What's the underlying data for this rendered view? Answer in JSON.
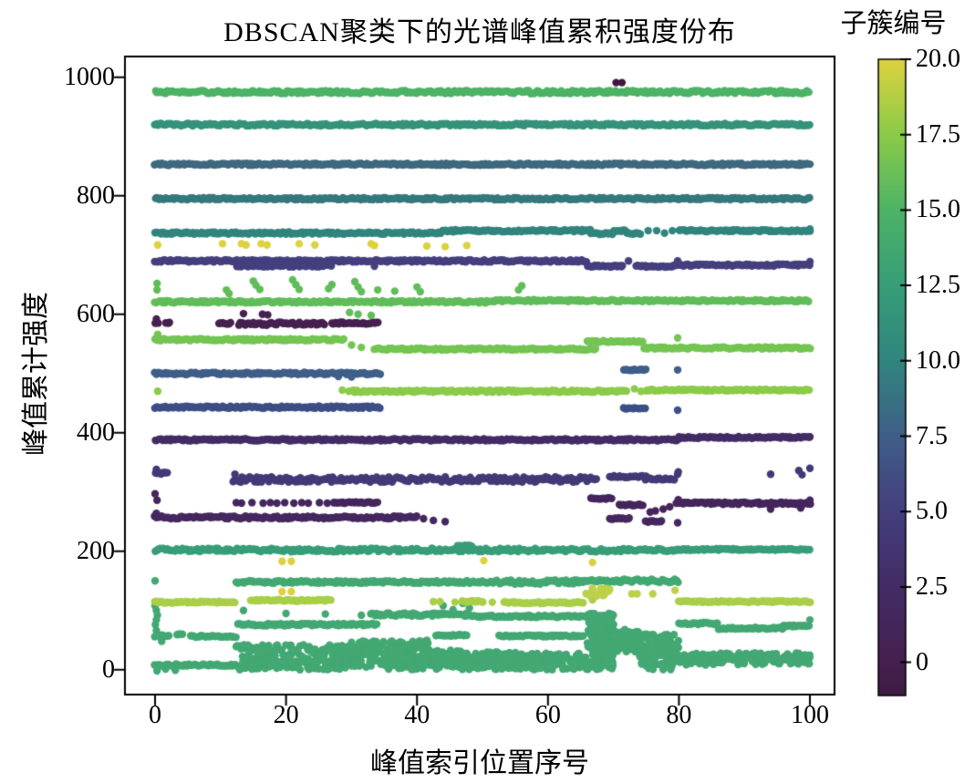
{
  "figure": {
    "background": "#ffffff",
    "frame_color": "#000000",
    "text_color": "#000000"
  },
  "chart_data": {
    "type": "scatter",
    "title": "DBSCAN聚类下的光谱峰值累积强度份布",
    "xlabel": "峰值索引位置序号",
    "ylabel": "峰值累计强度",
    "x_tick_labels": [
      "0",
      "20",
      "40",
      "60",
      "80",
      "100"
    ],
    "x_tick_values": [
      0,
      20,
      40,
      60,
      80,
      100
    ],
    "y_tick_labels": [
      "0",
      "200",
      "400",
      "600",
      "800",
      "1000"
    ],
    "y_tick_values": [
      0,
      200,
      400,
      600,
      800,
      1000
    ],
    "xlim": [
      -4.6,
      103.76
    ],
    "ylim": [
      -42,
      1035
    ],
    "grid": false,
    "marker_radius": 4.2,
    "point_step": 0.27,
    "colorbar": {
      "label": "子簇编号",
      "vmin": -1,
      "vmax": 20,
      "position": "right",
      "tick_values": [
        0,
        2.5,
        5,
        7.5,
        10,
        12.5,
        15,
        17.5,
        20
      ],
      "tick_labels": [
        "0",
        "2.5",
        "5.0",
        "7.5",
        "10.0",
        "12.5",
        "15.0",
        "17.5",
        "20.0"
      ],
      "stops": [
        [
          -1,
          "#3e1c44"
        ],
        [
          0,
          "#46204f"
        ],
        [
          2.5,
          "#432c66"
        ],
        [
          5,
          "#443f7e"
        ],
        [
          7.5,
          "#3f5e88"
        ],
        [
          10,
          "#31857e"
        ],
        [
          12.5,
          "#379e78"
        ],
        [
          15,
          "#4db366"
        ],
        [
          17.5,
          "#8bcb49"
        ],
        [
          20,
          "#ddd23e"
        ]
      ]
    },
    "clusters": [
      {
        "id": -1,
        "color": "#3f1740",
        "points": [
          [
            70.4,
            991
          ],
          [
            71.3,
            991
          ]
        ]
      },
      {
        "id": 0,
        "color": "#46204f",
        "bands": [
          [
            0,
            0.6,
            585,
            2
          ],
          [
            1.7,
            2.3,
            585,
            1.5
          ],
          [
            9.7,
            11.6,
            585,
            1.5
          ],
          [
            12.8,
            26,
            584,
            2.5
          ],
          [
            27,
            34.2,
            585,
            1.5
          ]
        ],
        "points": [
          [
            13.5,
            601
          ],
          [
            16.4,
            600
          ],
          [
            17.2,
            599
          ],
          [
            0.2,
            592
          ]
        ]
      },
      {
        "id": 1,
        "color": "#45265c",
        "bands": [
          [
            27.2,
            34.2,
            282,
            1.2
          ],
          [
            66.5,
            69.8,
            289,
            1.2
          ],
          [
            71,
            74.6,
            278,
            1.2
          ],
          [
            80,
            100,
            281,
            2
          ]
        ],
        "points": [
          [
            0,
            297
          ],
          [
            0.3,
            286
          ],
          [
            12.4,
            282
          ],
          [
            13.2,
            281
          ],
          [
            14.8,
            282
          ],
          [
            16.5,
            281
          ],
          [
            17.6,
            282
          ],
          [
            18.6,
            281
          ],
          [
            19.8,
            282
          ],
          [
            21.2,
            281
          ],
          [
            22.4,
            282
          ],
          [
            23.4,
            281
          ],
          [
            25.1,
            282
          ],
          [
            26.3,
            281
          ],
          [
            75.6,
            266
          ],
          [
            76.4,
            268
          ],
          [
            77.6,
            271
          ],
          [
            78.6,
            275
          ],
          [
            79.6,
            281
          ],
          [
            79.9,
            287
          ],
          [
            94,
            271
          ],
          [
            98.6,
            273
          ],
          [
            100,
            286
          ],
          [
            100,
            280
          ]
        ]
      },
      {
        "id": 2,
        "color": "#45285f",
        "bands": [
          [
            0,
            40,
            257,
            2.2
          ],
          [
            69.5,
            72.6,
            255,
            1.2
          ],
          [
            75,
            77.6,
            250,
            1.2
          ]
        ],
        "points": [
          [
            41,
            255
          ],
          [
            42.5,
            252
          ],
          [
            44.3,
            250
          ],
          [
            79.8,
            248
          ],
          [
            0.2,
            264
          ]
        ]
      },
      {
        "id": 3,
        "color": "#432c66",
        "bands": [
          [
            0,
            80,
            388,
            1.6
          ],
          [
            80,
            100,
            392,
            1.4
          ]
        ],
        "points": [
          [
            100,
            393
          ]
        ]
      },
      {
        "id": 4,
        "color": "#413a77",
        "bands": [
          [
            0,
            2,
            332,
            1.8
          ],
          [
            12,
            67.6,
            321,
            4.5
          ],
          [
            69.5,
            75,
            326,
            1.5
          ],
          [
            74.8,
            79.6,
            322,
            1.5
          ]
        ],
        "points": [
          [
            12.2,
            330
          ],
          [
            79.8,
            330
          ],
          [
            79.9,
            334
          ],
          [
            94,
            330
          ],
          [
            98.3,
            336
          ],
          [
            98.8,
            329
          ],
          [
            100,
            340
          ],
          [
            0.2,
            338
          ]
        ]
      },
      {
        "id": 5,
        "color": "#443f7e",
        "bands": [
          [
            0,
            66,
            690,
            1.8
          ],
          [
            12.5,
            27,
            682,
            2.2
          ],
          [
            66,
            71.5,
            681,
            1.5
          ],
          [
            73.5,
            79.6,
            681,
            1.5
          ],
          [
            80,
            100,
            683,
            1.6
          ]
        ],
        "points": [
          [
            33.5,
            681
          ],
          [
            72.3,
            690
          ],
          [
            79.8,
            690
          ],
          [
            100,
            689
          ]
        ]
      },
      {
        "id": 6,
        "color": "#3d4e85",
        "bands": [
          [
            0,
            34.5,
            443,
            1.8
          ],
          [
            71.6,
            75,
            441,
            1
          ]
        ],
        "points": [
          [
            79.8,
            438
          ]
        ]
      },
      {
        "id": 7,
        "color": "#3f5e88",
        "bands": [
          [
            0,
            34.5,
            500,
            1.8
          ],
          [
            71.6,
            75,
            506,
            1
          ]
        ],
        "points": [
          [
            79.8,
            506
          ],
          [
            28,
            495
          ],
          [
            30,
            494
          ]
        ]
      },
      {
        "id": 8,
        "color": "#3f697e",
        "bands": [
          [
            0,
            100,
            853,
            1.7
          ]
        ]
      },
      {
        "id": 9,
        "color": "#35787d",
        "bands": [
          [
            0,
            100,
            795,
            1.7
          ]
        ]
      },
      {
        "id": 10,
        "color": "#31857e",
        "bands": [
          [
            0,
            44,
            737,
            1.7
          ],
          [
            44,
            66.5,
            741,
            1.7
          ],
          [
            66.5,
            70,
            736,
            1.4
          ],
          [
            70,
            72,
            741,
            1.2
          ],
          [
            72,
            74.3,
            736,
            1.2
          ],
          [
            80,
            100,
            741,
            1.5
          ]
        ],
        "points": [
          [
            75.3,
            741
          ],
          [
            76.6,
            741
          ],
          [
            77.8,
            737
          ],
          [
            79,
            741
          ],
          [
            100,
            744
          ]
        ]
      },
      {
        "id": 11,
        "color": "#36937b",
        "bands": [
          [
            0,
            100,
            920,
            1.9
          ]
        ]
      },
      {
        "id": 12,
        "color": "#379e78",
        "bands": [
          [
            0,
            80,
            202,
            2.8
          ],
          [
            46.3,
            48.6,
            209,
            1.4
          ],
          [
            80,
            100,
            203,
            1.2
          ]
        ]
      },
      {
        "id": 13,
        "color": "#43a873",
        "bands": [
          [
            12.4,
            52,
            148,
            2
          ],
          [
            52,
            65,
            148,
            3.5
          ],
          [
            65,
            80,
            150,
            2.8
          ],
          [
            33,
            48,
            93,
            2.6
          ],
          [
            48,
            67,
            90,
            1.6
          ],
          [
            12.7,
            34,
            76,
            1.9
          ],
          [
            0,
            2.2,
            57,
            1.5
          ],
          [
            3.3,
            4.3,
            60,
            1
          ],
          [
            5.5,
            12.3,
            56,
            1.5
          ],
          [
            0,
            12.3,
            8,
            1.8
          ],
          [
            43,
            47.8,
            58,
            1.3
          ],
          [
            52.5,
            65.5,
            57,
            1.3
          ],
          [
            80,
            86,
            78,
            1.6
          ],
          [
            86,
            96,
            70,
            1.6
          ],
          [
            96,
            100,
            74,
            1.6
          ]
        ],
        "blobs": [
          [
            12,
            30,
            0,
            42,
            240
          ],
          [
            30,
            34,
            4,
            48,
            80
          ],
          [
            34,
            42,
            0,
            50,
            130
          ],
          [
            42,
            48,
            0,
            34,
            80
          ],
          [
            48,
            57,
            0,
            30,
            100
          ],
          [
            57,
            66,
            0,
            28,
            80
          ],
          [
            66,
            70,
            0,
            95,
            190
          ],
          [
            70,
            74,
            30,
            68,
            70
          ],
          [
            74,
            80,
            0,
            60,
            120
          ],
          [
            80,
            100,
            8,
            28,
            170
          ]
        ],
        "points": [
          [
            0,
            150
          ],
          [
            0,
            108
          ],
          [
            0.2,
            100
          ],
          [
            0.35,
            92
          ],
          [
            0.2,
            84
          ],
          [
            0.05,
            76
          ],
          [
            0.2,
            66
          ],
          [
            0.35,
            58
          ],
          [
            13.5,
            100
          ],
          [
            20,
            95
          ],
          [
            26,
            94
          ],
          [
            31.5,
            92
          ],
          [
            44,
            108
          ],
          [
            45.5,
            101
          ],
          [
            47,
            112
          ],
          [
            48,
            104
          ],
          [
            1,
            48
          ],
          [
            0.3,
            -2
          ],
          [
            1.6,
            1
          ],
          [
            3.1,
            -1
          ],
          [
            100,
            84
          ],
          [
            67,
            150
          ]
        ]
      },
      {
        "id": 14,
        "color": "#4db366",
        "bands": [
          [
            0,
            100,
            975,
            2.4
          ]
        ]
      },
      {
        "id": 15,
        "color": "#60bd5a",
        "bands": [
          [
            0,
            52,
            621,
            1.8
          ],
          [
            52,
            100,
            623,
            1.5
          ]
        ],
        "points": [
          [
            0.3,
            652
          ],
          [
            0.3,
            641
          ],
          [
            10.9,
            641
          ],
          [
            11.3,
            635
          ],
          [
            15,
            656
          ],
          [
            15.4,
            649
          ],
          [
            16,
            642
          ],
          [
            21,
            658
          ],
          [
            21.5,
            650
          ],
          [
            22,
            642
          ],
          [
            26.5,
            643
          ],
          [
            27,
            650
          ],
          [
            30.5,
            655
          ],
          [
            31,
            646
          ],
          [
            31.5,
            638
          ],
          [
            34,
            641
          ],
          [
            36.6,
            639
          ],
          [
            40,
            646
          ],
          [
            40.5,
            638
          ],
          [
            55.5,
            641
          ],
          [
            56,
            648
          ],
          [
            29.7,
            603
          ],
          [
            31,
            600
          ],
          [
            33,
            598
          ]
        ]
      },
      {
        "id": 16,
        "color": "#74c553",
        "bands": [
          [
            0,
            29,
            557,
            1.6
          ],
          [
            33.5,
            67.5,
            541,
            1.6
          ],
          [
            66,
            74.6,
            554,
            1.4
          ],
          [
            74.6,
            100,
            543,
            1.6
          ]
        ],
        "points": [
          [
            30,
            548
          ],
          [
            31.5,
            544
          ],
          [
            79.8,
            560
          ],
          [
            0.4,
            566
          ]
        ]
      },
      {
        "id": 17,
        "color": "#8bcb49",
        "bands": [
          [
            30.2,
            72.3,
            470,
            1.7
          ],
          [
            75,
            100,
            472,
            1.3
          ]
        ],
        "points": [
          [
            0.4,
            470
          ],
          [
            28.6,
            472
          ],
          [
            29.6,
            470
          ],
          [
            73.2,
            474
          ],
          [
            74.2,
            470
          ]
        ]
      },
      {
        "id": 18,
        "color": "#a9cf48",
        "bands": [
          [
            0,
            12.4,
            114,
            1.4
          ],
          [
            14.7,
            27,
            117,
            1.4
          ],
          [
            47,
            50,
            115,
            1.2
          ],
          [
            53.4,
            65.3,
            113,
            1.5
          ],
          [
            80,
            100,
            115,
            1.2
          ]
        ],
        "points": [
          [
            42.5,
            115
          ],
          [
            43.5,
            115
          ],
          [
            45.8,
            114
          ],
          [
            51.5,
            114
          ],
          [
            66.8,
            118
          ]
        ]
      },
      {
        "id": 19,
        "color": "#bdd04a",
        "blobs": [
          [
            65.8,
            70,
            124,
            140,
            16
          ]
        ],
        "points": [
          [
            72.8,
            128
          ],
          [
            73.6,
            128
          ],
          [
            76,
            128
          ],
          [
            79.4,
            134
          ]
        ]
      },
      {
        "id": 20,
        "color": "#ddd23e",
        "points": [
          [
            0.4,
            717
          ],
          [
            10.3,
            719
          ],
          [
            13.2,
            719
          ],
          [
            13.9,
            717
          ],
          [
            16.2,
            719
          ],
          [
            17.1,
            717
          ],
          [
            22,
            719
          ],
          [
            24.4,
            717
          ],
          [
            33,
            719
          ],
          [
            33.5,
            716
          ],
          [
            41.5,
            715
          ],
          [
            44.3,
            714
          ],
          [
            47.6,
            716
          ],
          [
            19.4,
            183
          ],
          [
            20.8,
            183
          ],
          [
            50.2,
            184
          ],
          [
            66.8,
            181
          ],
          [
            19.4,
            132
          ],
          [
            20.8,
            132
          ]
        ]
      }
    ]
  }
}
